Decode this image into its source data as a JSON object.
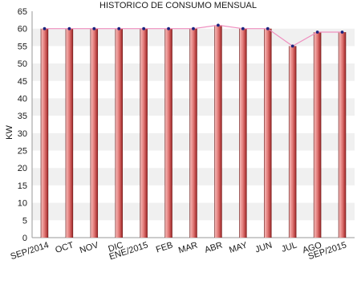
{
  "chart_data": {
    "type": "bar",
    "title": "HISTORICO DE CONSUMO MENSUAL",
    "ylabel": "KW",
    "xlabel": "",
    "ylim": [
      0,
      65
    ],
    "ytick_step": 5,
    "categories": [
      "SEP/2014",
      "OCT",
      "NOV",
      "DIC",
      "ENE/2015",
      "FEB",
      "MAR",
      "ABR",
      "MAY",
      "JUN",
      "JUL",
      "AGO",
      "SEP/2015"
    ],
    "series": [
      {
        "values": [
          60,
          60,
          60,
          60,
          60,
          60,
          60,
          61,
          60,
          60,
          55,
          59,
          59
        ]
      }
    ],
    "overlay_line": {
      "color": "#ef8fbf",
      "marker_color": "#1a237e"
    },
    "grid": "horizontal bands",
    "legend": "none",
    "colors": {
      "bar_light": "#f2b0b0",
      "bar_mid": "#e0706e",
      "bar_dark": "#6a1616",
      "band": "#f0f0f0"
    }
  }
}
